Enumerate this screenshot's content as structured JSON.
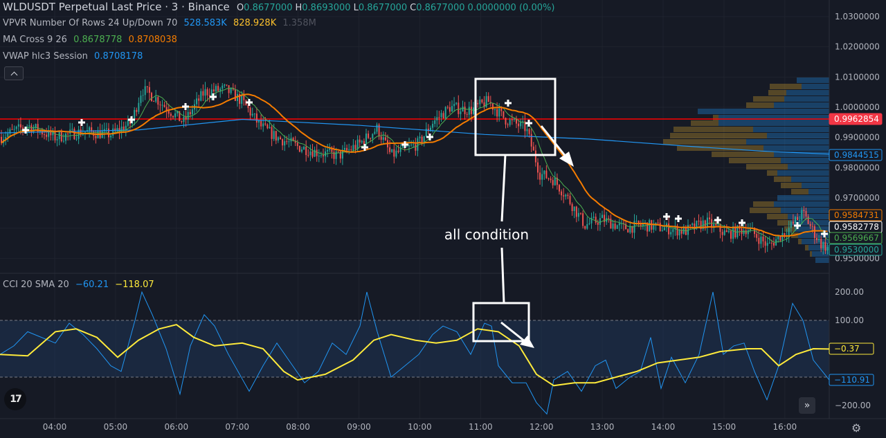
{
  "legend": {
    "symbol_line": "WLDUSDT Perpetual Last Price · 3 · Binance",
    "ohlc": [
      {
        "k": "O",
        "v": "0.8677000"
      },
      {
        "k": "H",
        "v": "0.8693000"
      },
      {
        "k": "L",
        "v": "0.8677000"
      },
      {
        "k": "C",
        "v": "0.8677000"
      },
      {
        "k": "",
        "v": "0.0000000 (0.00%)"
      }
    ],
    "vpvr": {
      "name": "VPVR Number Of Rows 24 Up/Down 70",
      "v1": "528.583K",
      "v2": "828.928K",
      "v3": "1.358M"
    },
    "ma": {
      "name": "MA Cross 9 26",
      "v1": "0.8678778",
      "v2": "0.8708038"
    },
    "vwap": {
      "name": "VWAP hlc3 Session",
      "v1": "0.8708178"
    },
    "cci": {
      "name": "CCI 20 SMA 20",
      "v1": "−60.21",
      "v2": "−118.07"
    }
  },
  "annotation": {
    "label": "all condition"
  },
  "colors": {
    "up": "#26a69a",
    "down": "#ef5350",
    "ma_fast": "#4caf50",
    "ma_slow": "#f57c00",
    "vwap": "#2196f3",
    "cci": "#2196f3",
    "cci_sma": "#ffeb3b",
    "price_line": "#ff0000"
  },
  "price_axis": [
    "1.0300000",
    "1.0200000",
    "1.0100000",
    "1.0000000",
    "0.9900000",
    "0.9800000",
    "0.9700000",
    "0.9600000",
    "0.9500000"
  ],
  "price_labels": [
    {
      "v": "0.9962854",
      "bg": "#f23645",
      "fg": "#ffffff",
      "border": "#f23645"
    },
    {
      "v": "0.9844515",
      "bg": "#161a25",
      "fg": "#2196f3",
      "border": "#2196f3"
    },
    {
      "v": "0.9584731",
      "bg": "#161a25",
      "fg": "#f57c00",
      "border": "#f57c00"
    },
    {
      "v": "0.9582778",
      "bg": "#161a25",
      "fg": "#ffffff",
      "border": "#ffffff"
    },
    {
      "v": "0.9569667",
      "bg": "#161a25",
      "fg": "#4caf50",
      "border": "#4caf50"
    },
    {
      "v": "0.9530000",
      "bg": "#161a25",
      "fg": "#26a69a",
      "border": "#26a69a"
    }
  ],
  "cci_axis": [
    "200.00",
    "100.00",
    "−200.00"
  ],
  "cci_labels": [
    {
      "v": "−0.37",
      "bg": "#161a25",
      "fg": "#ffeb3b",
      "border": "#ffeb3b"
    },
    {
      "v": "−110.91",
      "bg": "#161a25",
      "fg": "#2196f3",
      "border": "#2196f3"
    }
  ],
  "time_axis": [
    "04:00",
    "05:00",
    "06:00",
    "07:00",
    "08:00",
    "09:00",
    "10:00",
    "11:00",
    "12:00",
    "13:00",
    "14:00",
    "15:00",
    "16:00"
  ],
  "icons": {
    "logo": "tradingview-logo-icon",
    "collapse": "chevron-up-icon",
    "scroll": "double-chevron-right-icon",
    "settings": "gear-icon"
  },
  "logo_text": "17",
  "scroll_glyph": "»",
  "gear_glyph": "⚙"
}
